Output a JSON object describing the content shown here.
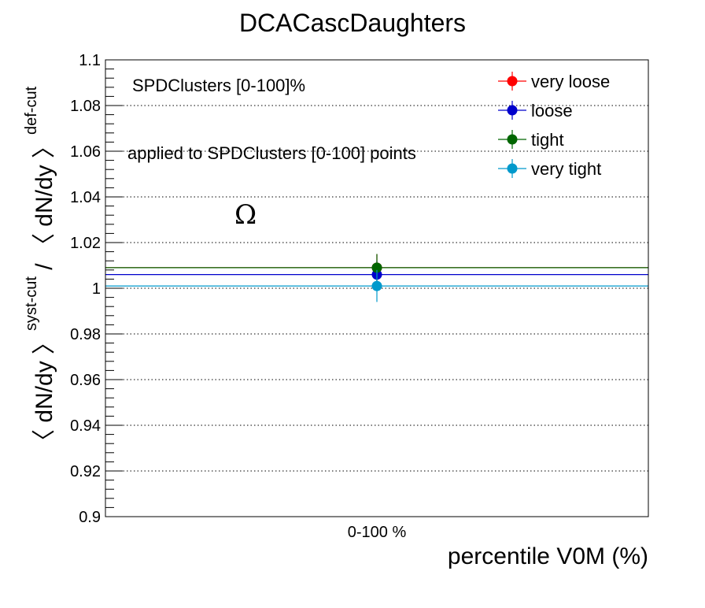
{
  "chart_data": {
    "type": "scatter",
    "title": "DCACascDaughters",
    "xlabel": "percentile V0M (%)",
    "ylabel": {
      "open": "〈 dN/dy 〉",
      "sup1": "syst-cut",
      "mid": " / 〈 dN/dy 〉",
      "sup2": "def-cut"
    },
    "ylim": [
      0.9,
      1.1
    ],
    "yticks": [
      0.9,
      0.92,
      0.94,
      0.96,
      0.98,
      1.0,
      1.02,
      1.04,
      1.06,
      1.08,
      1.1
    ],
    "ytick_labels": [
      "0.9",
      "0.92",
      "0.94",
      "0.96",
      "0.98",
      "1",
      "1.02",
      "1.04",
      "1.06",
      "1.08",
      "1.1"
    ],
    "categories": [
      "0-100 %"
    ],
    "grid": "horizontal",
    "legend_position": "top-right",
    "annotations": [
      "SPDClusters [0-100]%",
      "applied to SPDClusters [0-100] points",
      "Ω"
    ],
    "series": [
      {
        "name": "very loose",
        "color": "#ff0000",
        "values": [
          1.009
        ],
        "errors": [
          0.006
        ]
      },
      {
        "name": "loose",
        "color": "#0000cc",
        "values": [
          1.006
        ],
        "errors": [
          0.006
        ]
      },
      {
        "name": "tight",
        "color": "#006600",
        "values": [
          1.009
        ],
        "errors": [
          0.006
        ]
      },
      {
        "name": "very tight",
        "color": "#0099cc",
        "values": [
          1.001
        ],
        "errors": [
          0.007
        ]
      }
    ],
    "reference_lines": [
      {
        "value": 1.009,
        "color": "#ff0000"
      },
      {
        "value": 1.006,
        "color": "#0000cc"
      },
      {
        "value": 1.009,
        "color": "#006600"
      },
      {
        "value": 1.001,
        "color": "#0099cc"
      }
    ]
  }
}
